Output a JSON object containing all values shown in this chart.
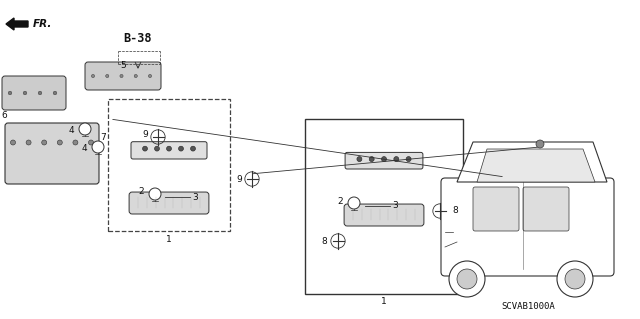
{
  "background_color": "#ffffff",
  "fig_width": 6.4,
  "fig_height": 3.19,
  "dpi": 100,
  "diagram_code": "SCVAB1000A",
  "ref_code": "B-38",
  "fr_label": "FR.",
  "line_color": "#333333",
  "text_color": "#111111",
  "small_font": 6.5,
  "medium_font": 7.5,
  "bold_ref_font": 8.5
}
